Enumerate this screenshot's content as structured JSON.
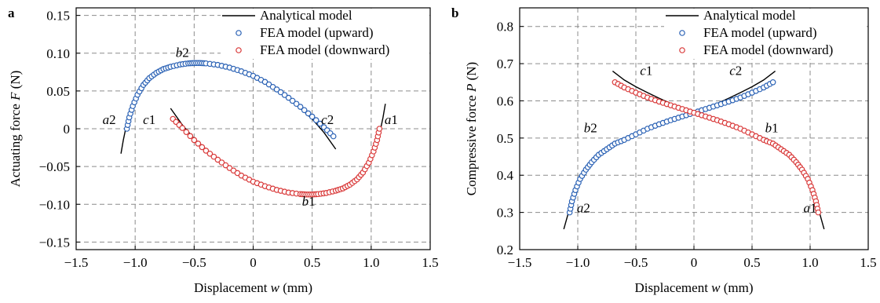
{
  "chart_data": [
    {
      "type": "scatter",
      "panel_label": "a",
      "xlabel": "Displacement w (mm)",
      "ylabel": "Actuating force F (N)",
      "xlim": [
        -1.5,
        1.5
      ],
      "ylim": [
        -0.16,
        0.16
      ],
      "xticks": [
        "−1.5",
        "−1.0",
        "−0.5",
        "0",
        "0.5",
        "1.0",
        "1.5"
      ],
      "yticks": [
        "−0.15",
        "−0.10",
        "−0.05",
        "0",
        "0.05",
        "0.10",
        "0.15"
      ],
      "grid": true,
      "legend_position": "top-right",
      "legend": [
        "Analytical model",
        "FEA model (upward)",
        "FEA model (downward)"
      ],
      "annotations": [
        "a2",
        "b2",
        "c2",
        "c1",
        "b1",
        "a1"
      ],
      "series": [
        {
          "name": "FEA model (upward)",
          "x": [
            -1.07,
            -1.05,
            -1.02,
            -0.98,
            -0.93,
            -0.88,
            -0.82,
            -0.76,
            -0.7,
            -0.62,
            -0.55,
            -0.5,
            -0.45,
            -0.4,
            -0.3,
            -0.2,
            -0.1,
            0.0,
            0.1,
            0.2,
            0.3,
            0.4,
            0.5,
            0.6,
            0.68
          ],
          "y": [
            0.0,
            0.015,
            0.03,
            0.045,
            0.058,
            0.067,
            0.074,
            0.079,
            0.082,
            0.085,
            0.0865,
            0.087,
            0.087,
            0.0865,
            0.0845,
            0.081,
            0.076,
            0.07,
            0.062,
            0.052,
            0.041,
            0.029,
            0.016,
            0.002,
            -0.01
          ]
        },
        {
          "name": "FEA model (downward)",
          "x": [
            -0.68,
            -0.6,
            -0.5,
            -0.4,
            -0.3,
            -0.2,
            -0.1,
            0.0,
            0.1,
            0.2,
            0.3,
            0.4,
            0.45,
            0.5,
            0.55,
            0.62,
            0.7,
            0.76,
            0.82,
            0.88,
            0.93,
            0.98,
            1.02,
            1.05,
            1.07
          ],
          "y": [
            0.013,
            0.001,
            -0.015,
            -0.029,
            -0.041,
            -0.052,
            -0.062,
            -0.07,
            -0.076,
            -0.081,
            -0.0845,
            -0.0865,
            -0.087,
            -0.087,
            -0.0865,
            -0.085,
            -0.082,
            -0.079,
            -0.074,
            -0.067,
            -0.058,
            -0.045,
            -0.03,
            -0.015,
            0.0
          ]
        },
        {
          "name": "Analytical model",
          "x": [
            -1.12,
            -1.1,
            -1.08,
            -1.05,
            -1.0,
            -0.95,
            -0.9,
            -0.8,
            -0.7,
            -0.6,
            -0.5,
            -0.4,
            -0.3,
            -0.2,
            -0.1,
            0.0,
            0.1,
            0.2,
            0.3,
            0.4,
            0.5,
            0.6,
            0.7
          ],
          "y": [
            -0.033,
            -0.015,
            0.0,
            0.018,
            0.04,
            0.055,
            0.065,
            0.077,
            0.083,
            0.086,
            0.087,
            0.086,
            0.084,
            0.08,
            0.075,
            0.069,
            0.061,
            0.051,
            0.04,
            0.027,
            0.013,
            -0.005,
            -0.027
          ]
        },
        {
          "name": "Analytical model",
          "x": [
            -0.7,
            -0.6,
            -0.5,
            -0.4,
            -0.3,
            -0.2,
            -0.1,
            0.0,
            0.1,
            0.2,
            0.3,
            0.4,
            0.5,
            0.6,
            0.7,
            0.8,
            0.9,
            0.95,
            1.0,
            1.05,
            1.08,
            1.1,
            1.12
          ],
          "y": [
            0.027,
            0.005,
            -0.013,
            -0.027,
            -0.04,
            -0.051,
            -0.061,
            -0.069,
            -0.075,
            -0.08,
            -0.084,
            -0.086,
            -0.087,
            -0.086,
            -0.083,
            -0.077,
            -0.065,
            -0.055,
            -0.04,
            -0.018,
            0.0,
            0.015,
            0.033
          ]
        }
      ]
    },
    {
      "type": "scatter",
      "panel_label": "b",
      "xlabel": "Displacement w (mm)",
      "ylabel": "Compressive force P (N)",
      "xlim": [
        -1.5,
        1.5
      ],
      "ylim": [
        0.2,
        0.85
      ],
      "xticks": [
        "−1.5",
        "−1.0",
        "−0.5",
        "0",
        "0.5",
        "1.0",
        "1.5"
      ],
      "yticks": [
        "0.2",
        "0.3",
        "0.4",
        "0.5",
        "0.6",
        "0.7",
        "0.8"
      ],
      "grid": true,
      "legend_position": "top-right",
      "legend": [
        "Analytical model",
        "FEA model (upward)",
        "FEA model (downward)"
      ],
      "annotations": [
        "c1",
        "c2",
        "b2",
        "b1",
        "a2",
        "a1"
      ],
      "series": [
        {
          "name": "FEA model (upward)",
          "x": [
            -1.07,
            -1.05,
            -1.02,
            -0.98,
            -0.93,
            -0.88,
            -0.82,
            -0.75,
            -0.68,
            -0.6,
            -0.5,
            -0.4,
            -0.3,
            -0.2,
            -0.1,
            0.0,
            0.1,
            0.2,
            0.3,
            0.4,
            0.5,
            0.6,
            0.68
          ],
          "y": [
            0.3,
            0.33,
            0.36,
            0.39,
            0.415,
            0.435,
            0.455,
            0.47,
            0.485,
            0.495,
            0.51,
            0.525,
            0.537,
            0.548,
            0.558,
            0.568,
            0.578,
            0.588,
            0.598,
            0.609,
            0.622,
            0.636,
            0.65
          ]
        },
        {
          "name": "FEA model (downward)",
          "x": [
            -0.68,
            -0.6,
            -0.5,
            -0.4,
            -0.3,
            -0.2,
            -0.1,
            0.0,
            0.1,
            0.2,
            0.3,
            0.4,
            0.5,
            0.6,
            0.68,
            0.75,
            0.82,
            0.88,
            0.93,
            0.98,
            1.02,
            1.05,
            1.07
          ],
          "y": [
            0.65,
            0.636,
            0.622,
            0.609,
            0.598,
            0.588,
            0.578,
            0.568,
            0.558,
            0.548,
            0.537,
            0.525,
            0.51,
            0.495,
            0.485,
            0.47,
            0.455,
            0.435,
            0.415,
            0.39,
            0.36,
            0.33,
            0.3
          ]
        },
        {
          "name": "Analytical model",
          "x": [
            -1.12,
            -1.08,
            -1.04,
            -1.0,
            -0.95,
            -0.9,
            -0.8,
            -0.7,
            -0.6,
            -0.5,
            -0.4,
            -0.3,
            -0.2,
            -0.1,
            0.0,
            0.1,
            0.2,
            0.3,
            0.4,
            0.5,
            0.6,
            0.7
          ],
          "y": [
            0.255,
            0.3,
            0.34,
            0.37,
            0.4,
            0.425,
            0.46,
            0.485,
            0.5,
            0.513,
            0.525,
            0.537,
            0.548,
            0.558,
            0.568,
            0.58,
            0.593,
            0.607,
            0.622,
            0.638,
            0.656,
            0.68
          ]
        },
        {
          "name": "Analytical model",
          "x": [
            -0.7,
            -0.6,
            -0.5,
            -0.4,
            -0.3,
            -0.2,
            -0.1,
            0.0,
            0.1,
            0.2,
            0.3,
            0.4,
            0.5,
            0.6,
            0.7,
            0.8,
            0.9,
            0.95,
            1.0,
            1.04,
            1.08,
            1.12
          ],
          "y": [
            0.68,
            0.656,
            0.638,
            0.622,
            0.607,
            0.593,
            0.58,
            0.568,
            0.558,
            0.548,
            0.537,
            0.525,
            0.513,
            0.5,
            0.485,
            0.46,
            0.425,
            0.4,
            0.37,
            0.34,
            0.3,
            0.255
          ]
        }
      ]
    }
  ],
  "colors": {
    "upward": "#2b62b5",
    "downward": "#d93a3a",
    "analytical": "#000000",
    "grid": "#8c8c8c"
  }
}
